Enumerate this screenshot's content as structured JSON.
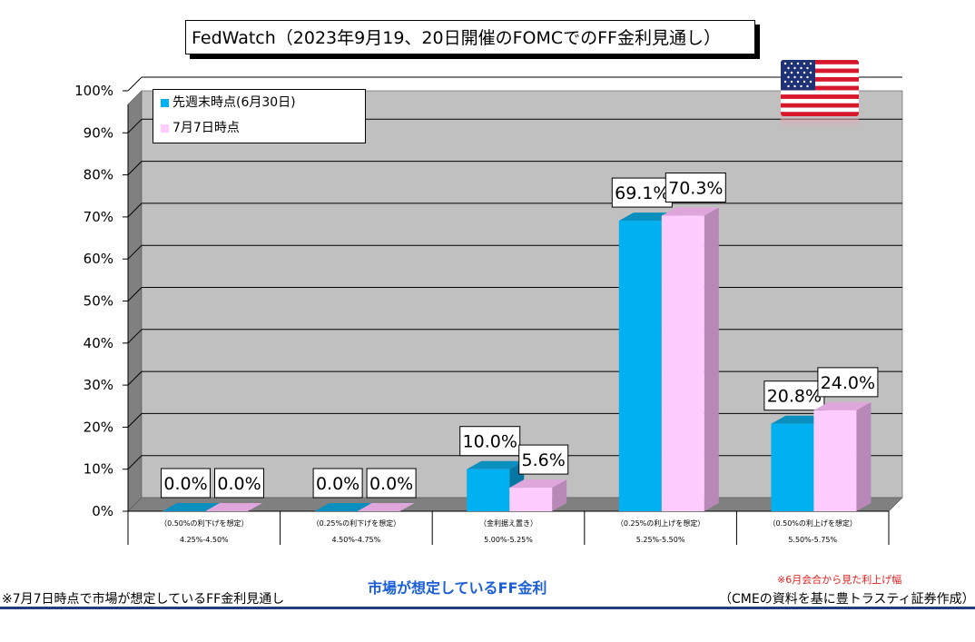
{
  "chart_data": {
    "type": "bar",
    "title": "FedWatch（2023年9月19、20日開催のFOMCでのFF金利見通し）",
    "categories": [
      {
        "note": "（0.50%の利下げを想定）",
        "range": "4.25%-4.50%"
      },
      {
        "note": "（0.25%の利下げを想定）",
        "range": "4.50%-4.75%"
      },
      {
        "note": "（金利据え置き）",
        "range": "5.00%-5.25%"
      },
      {
        "note": "（0.25%の利上げを想定）",
        "range": "5.25%-5.50%"
      },
      {
        "note": "（0.50%の利上げを想定）",
        "range": "5.50%-5.75%"
      }
    ],
    "series": [
      {
        "name": "先週末時点(6月30日)",
        "color": "#00b0f0",
        "values": [
          0.0,
          0.0,
          10.0,
          69.1,
          20.8
        ]
      },
      {
        "name": "7月7日時点",
        "color": "#ffccff",
        "values": [
          0.0,
          0.0,
          5.6,
          70.3,
          24.0
        ]
      }
    ],
    "data_labels": [
      [
        "0.0%",
        "0.0%",
        "10.0%",
        "69.1%",
        "20.8%"
      ],
      [
        "0.0%",
        "0.0%",
        "5.6%",
        "70.3%",
        "24.0%"
      ]
    ],
    "ylim": [
      0,
      100
    ],
    "yticks": [
      "0%",
      "10%",
      "20%",
      "30%",
      "40%",
      "50%",
      "60%",
      "70%",
      "80%",
      "90%",
      "100%"
    ],
    "grid": true,
    "legend_position": "top-left"
  },
  "xlabel": "市場が想定しているFF金利",
  "footnote_left": "※7月7日時点で市場が想定しているFF金利見通し",
  "footnote_red": "※6月会合から見た利上げ幅",
  "source": "（CMEの資料を基に豊トラスティ証券作成）",
  "colors": {
    "accent_text": "#1a5fd8",
    "note_red": "#e21b1b",
    "wall": "#c0c0c0",
    "floor": "#808080"
  }
}
